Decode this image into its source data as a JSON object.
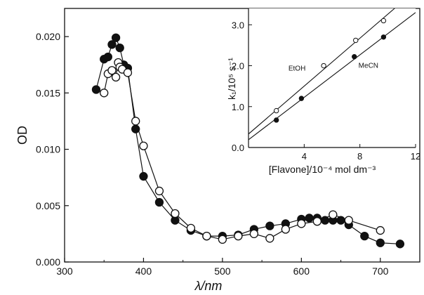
{
  "chart_data": [
    {
      "type": "scatter",
      "xlabel": "λ/nm",
      "ylabel": "OD",
      "xlim": [
        300,
        750
      ],
      "ylim": [
        0,
        0.0225
      ],
      "x_ticks": [
        "300",
        "400",
        "500",
        "600",
        "700"
      ],
      "x_tick_values": [
        300,
        400,
        500,
        600,
        700
      ],
      "y_ticks": [
        "0.000",
        "0.005",
        "0.010",
        "0.015",
        "0.020"
      ],
      "y_tick_values": [
        0,
        0.005,
        0.01,
        0.015,
        0.02
      ],
      "series": [
        {
          "marker": "filled-circle",
          "connected": true,
          "x": [
            340,
            350,
            355,
            360,
            365,
            370,
            375,
            380,
            390,
            400,
            420,
            440,
            460,
            480,
            500,
            520,
            540,
            560,
            580,
            600,
            610,
            620,
            630,
            640,
            650,
            660,
            680,
            700,
            725
          ],
          "y": [
            0.0153,
            0.018,
            0.0182,
            0.0193,
            0.0199,
            0.019,
            0.0175,
            0.0172,
            0.0118,
            0.0076,
            0.0053,
            0.0037,
            0.0028,
            0.0023,
            0.0023,
            0.0024,
            0.0029,
            0.0032,
            0.0034,
            0.0038,
            0.0039,
            0.0039,
            0.0037,
            0.0037,
            0.0037,
            0.0033,
            0.0023,
            0.0017,
            0.0016
          ]
        },
        {
          "marker": "open-circle",
          "connected": true,
          "x": [
            350,
            355,
            360,
            365,
            368,
            370,
            373,
            380,
            390,
            400,
            420,
            440,
            460,
            480,
            500,
            520,
            540,
            560,
            580,
            600,
            620,
            640,
            660,
            700
          ],
          "y": [
            0.015,
            0.0167,
            0.017,
            0.0164,
            0.0177,
            0.0173,
            0.0171,
            0.0168,
            0.0125,
            0.0103,
            0.0063,
            0.0043,
            0.003,
            0.0023,
            0.002,
            0.0023,
            0.0025,
            0.0021,
            0.0029,
            0.0034,
            0.0036,
            0.0042,
            0.0037,
            0.0028
          ]
        }
      ]
    },
    {
      "type": "scatter",
      "inset": true,
      "xlabel": "[Flavone]/10⁻⁴ mol dm⁻³",
      "ylabel": "k₁/10⁵ s⁻¹",
      "xlim": [
        0,
        12
      ],
      "ylim": [
        0,
        3.4
      ],
      "x_ticks": [
        "4",
        "8",
        "12"
      ],
      "x_tick_values": [
        4,
        8,
        12
      ],
      "y_ticks": [
        "0.0",
        "1.0",
        "2.0",
        "3.0"
      ],
      "y_tick_values": [
        0,
        1,
        2,
        3
      ],
      "series": [
        {
          "name": "EtOH",
          "marker": "open-circle",
          "x": [
            2.0,
            5.4,
            7.7,
            9.7
          ],
          "y": [
            0.9,
            2.0,
            2.62,
            3.1
          ],
          "fit": [
            [
              0,
              0.33
            ],
            [
              11,
              3.55
            ]
          ]
        },
        {
          "name": "MeCN",
          "marker": "filled-circle",
          "x": [
            2.0,
            3.8,
            7.6,
            9.7
          ],
          "y": [
            0.67,
            1.2,
            2.22,
            2.7
          ],
          "fit": [
            [
              0,
              0.19
            ],
            [
              12,
              3.3
            ]
          ]
        }
      ]
    }
  ]
}
